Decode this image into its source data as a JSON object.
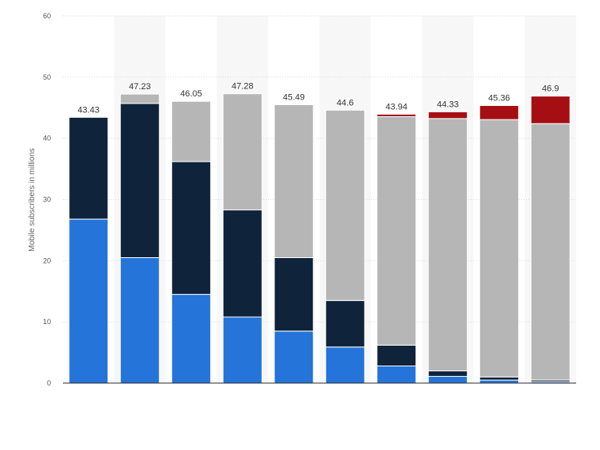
{
  "chart_data": {
    "type": "bar",
    "stacked": true,
    "ylabel": "Mobile subscribers in millions",
    "ylim": [
      0,
      60
    ],
    "yticks": [
      0,
      10,
      20,
      30,
      40,
      50,
      60
    ],
    "grid": true,
    "totals": [
      "43.43",
      "47.23",
      "46.05",
      "47.28",
      "45.49",
      "44.6",
      "43.94",
      "44.33",
      "45.36",
      "46.9"
    ],
    "series": [
      {
        "color": "#2474d9",
        "values": [
          26.8,
          20.5,
          14.5,
          10.8,
          8.5,
          5.9,
          2.8,
          1.1,
          0.5,
          0.2
        ]
      },
      {
        "color": "#0f243b",
        "values": [
          16.63,
          25.2,
          21.7,
          17.5,
          12.0,
          7.6,
          3.4,
          0.9,
          0.5,
          0.3
        ]
      },
      {
        "color": "#b6b6b6",
        "values": [
          0,
          1.53,
          9.85,
          18.98,
          24.99,
          31.1,
          37.34,
          41.23,
          42.06,
          41.9
        ]
      },
      {
        "color": "#a50f14",
        "values": [
          0,
          0,
          0,
          0,
          0,
          0,
          0.4,
          1.1,
          2.3,
          4.5
        ]
      }
    ],
    "band_color": "#f7f7f7"
  }
}
